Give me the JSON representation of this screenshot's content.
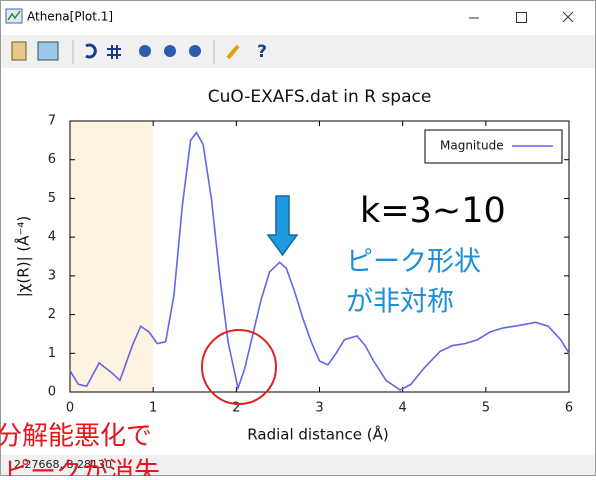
{
  "window": {
    "title": "Athena[Plot.1]",
    "status": "2.27668, 8.28130",
    "help": "?"
  },
  "chart_data": {
    "type": "line",
    "title": "CuO-EXAFS.dat in R space",
    "x_label": "Radial distance   (Å)",
    "y_label": "|χ(R)|   (Å⁻⁴)",
    "xlim": [
      0,
      6
    ],
    "ylim": [
      0,
      7
    ],
    "xticks": [
      0,
      1,
      2,
      3,
      4,
      5,
      6
    ],
    "yticks": [
      0,
      1,
      2,
      3,
      4,
      5,
      6,
      7
    ],
    "highlight_range": [
      0,
      1
    ],
    "highlight_color": "#fdf3e0",
    "legend": "upper right",
    "x": [
      0,
      0.1,
      0.2,
      0.35,
      0.5,
      0.6,
      0.75,
      0.85,
      0.95,
      1.05,
      1.15,
      1.25,
      1.35,
      1.45,
      1.52,
      1.6,
      1.7,
      1.8,
      1.9,
      2.02,
      2.1,
      2.2,
      2.3,
      2.4,
      2.52,
      2.6,
      2.7,
      2.8,
      2.9,
      3.0,
      3.1,
      3.2,
      3.3,
      3.45,
      3.55,
      3.65,
      3.8,
      3.97,
      4.1,
      4.25,
      4.45,
      4.6,
      4.75,
      4.9,
      5.05,
      5.2,
      5.4,
      5.6,
      5.75,
      5.9,
      6.0
    ],
    "series": [
      {
        "name": "Magnitude",
        "color": "#6464ec",
        "values": [
          0.55,
          0.2,
          0.15,
          0.75,
          0.5,
          0.3,
          1.2,
          1.7,
          1.55,
          1.25,
          1.3,
          2.5,
          4.8,
          6.5,
          6.7,
          6.4,
          5.0,
          3.0,
          1.3,
          0.1,
          0.6,
          1.5,
          2.4,
          3.1,
          3.35,
          3.2,
          2.6,
          1.9,
          1.3,
          0.8,
          0.7,
          1.0,
          1.35,
          1.45,
          1.2,
          0.8,
          0.3,
          0.05,
          0.2,
          0.6,
          1.05,
          1.2,
          1.25,
          1.35,
          1.55,
          1.65,
          1.72,
          1.8,
          1.7,
          1.35,
          1.0
        ]
      }
    ],
    "annotations": [
      "k=3~10",
      "ピーク形状",
      "が非対称",
      "分解能悪化で",
      "ピークが消失"
    ]
  }
}
